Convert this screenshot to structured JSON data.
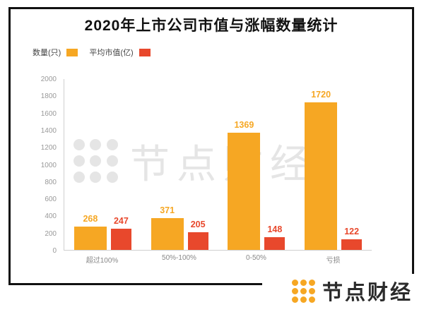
{
  "title": "2020年上市公司市值与涨幅数量统计",
  "legend": [
    {
      "label": "数量(只)",
      "color": "#F6A723"
    },
    {
      "label": "平均市值(亿)",
      "color": "#E8482C"
    }
  ],
  "chart_data": {
    "type": "bar",
    "title": "2020年上市公司市值与涨幅数量统计",
    "categories": [
      "超过100%",
      "50%-100%",
      "0-50%",
      "亏损"
    ],
    "series": [
      {
        "name": "数量(只)",
        "color": "#F6A723",
        "values": [
          268,
          371,
          1369,
          1720
        ]
      },
      {
        "name": "平均市值(亿)",
        "color": "#E8482C",
        "values": [
          247,
          205,
          148,
          122
        ]
      }
    ],
    "xlabel": "",
    "ylabel": "",
    "ylim": [
      0,
      2000
    ],
    "ytick_step": 200,
    "grid": false,
    "legend_position": "top-left"
  },
  "watermark": {
    "text": "节点财经",
    "color": "#E5E5E5"
  },
  "footer_logo": {
    "text": "节点财经",
    "brand_color": "#F6A723",
    "text_color": "#2B2B2B"
  }
}
